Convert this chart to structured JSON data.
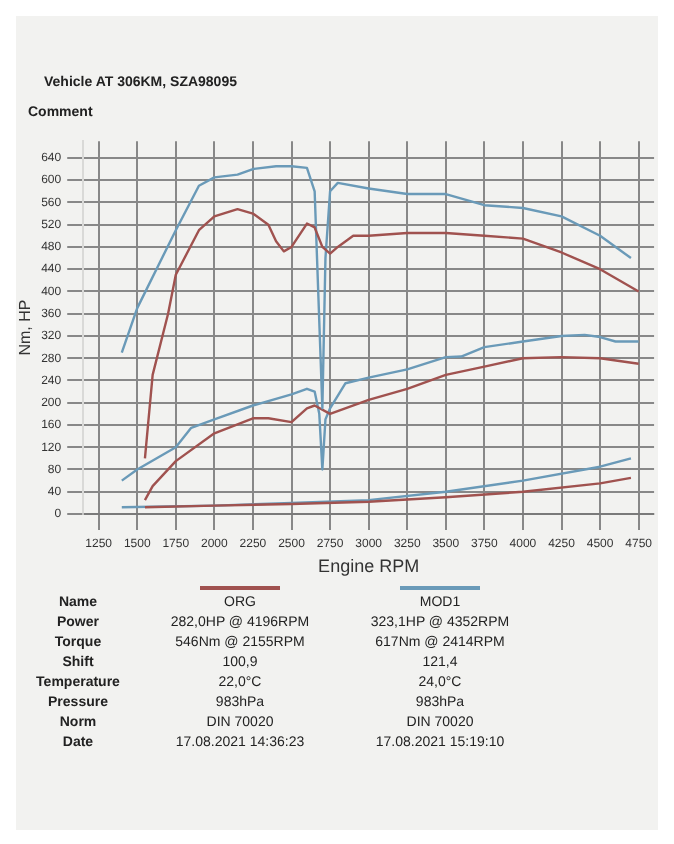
{
  "chart_data": {
    "type": "line",
    "xlabel": "Engine RPM",
    "ylabel": "Nm, HP",
    "xlim": [
      1150,
      4850
    ],
    "xticks": [
      1250,
      1500,
      1750,
      2000,
      2250,
      2500,
      2750,
      3000,
      3250,
      3500,
      3750,
      4000,
      4250,
      4500,
      4750
    ],
    "ylim": [
      0,
      670
    ],
    "yticks": [
      0,
      40,
      80,
      120,
      160,
      200,
      240,
      280,
      320,
      360,
      400,
      440,
      480,
      520,
      560,
      600,
      640
    ],
    "grid": true,
    "legend": false,
    "annotations": [
      "Vehicle   AT 306KM, SZA98095",
      "Comment",
      "Name",
      "ORG",
      "MOD1",
      "Power",
      "282,0HP @  4196RPM",
      "323,1HP @  4352RPM",
      "Torque",
      "546Nm @ 2155RPM",
      "617Nm @ 2414RPM",
      "Shift",
      "100,9",
      "121,4",
      "Temperature",
      "22,0°C",
      "24,0°C",
      "Pressure",
      "983hPa",
      "983hPa",
      "Norm",
      "DIN 70020",
      "DIN 70020",
      "Date",
      "17.08.2021 14:36:23",
      "17.08.2021 15:19:10"
    ],
    "series": [
      {
        "color": "#a0524f",
        "x": [
          1550,
          1600,
          1700,
          1750,
          1900,
          2000,
          2150,
          2250,
          2350,
          2400,
          2450,
          2500,
          2600,
          2650,
          2700,
          2750,
          2800,
          2900,
          3000,
          3250,
          3500,
          3750,
          4000,
          4250,
          4500,
          4750
        ],
        "values": [
          100,
          250,
          360,
          430,
          510,
          535,
          548,
          540,
          520,
          490,
          472,
          480,
          522,
          515,
          480,
          468,
          480,
          500,
          500,
          505,
          505,
          500,
          495,
          470,
          440,
          400
        ]
      },
      {
        "color": "#6a9ab8",
        "x": [
          1400,
          1500,
          1750,
          1900,
          2000,
          2150,
          2250,
          2400,
          2500,
          2600,
          2650,
          2700,
          2720,
          2750,
          2800,
          3000,
          3250,
          3500,
          3750,
          4000,
          4250,
          4500,
          4700
        ],
        "values": [
          290,
          370,
          510,
          590,
          605,
          610,
          620,
          625,
          625,
          622,
          580,
          190,
          460,
          580,
          595,
          585,
          575,
          575,
          555,
          550,
          535,
          500,
          460
        ]
      },
      {
        "color": "#a0524f",
        "x": [
          1550,
          1600,
          1750,
          2000,
          2250,
          2350,
          2500,
          2600,
          2650,
          2750,
          3000,
          3250,
          3500,
          3750,
          4000,
          4250,
          4500,
          4750
        ],
        "values": [
          25,
          50,
          95,
          145,
          172,
          172,
          165,
          190,
          195,
          180,
          205,
          225,
          250,
          265,
          280,
          282,
          280,
          270
        ]
      },
      {
        "color": "#6a9ab8",
        "x": [
          1400,
          1500,
          1750,
          1850,
          2000,
          2250,
          2500,
          2600,
          2650,
          2680,
          2700,
          2720,
          2750,
          2850,
          3000,
          3250,
          3500,
          3600,
          3750,
          4000,
          4250,
          4400,
          4500,
          4600,
          4750
        ],
        "values": [
          60,
          80,
          120,
          155,
          170,
          195,
          215,
          225,
          220,
          180,
          80,
          170,
          190,
          235,
          245,
          260,
          282,
          283,
          300,
          310,
          320,
          322,
          318,
          310,
          310
        ]
      },
      {
        "color": "#a0524f",
        "x": [
          1550,
          2000,
          2500,
          3000,
          3500,
          4000,
          4500,
          4700
        ],
        "values": [
          12,
          15,
          18,
          22,
          30,
          40,
          55,
          65
        ]
      },
      {
        "color": "#6a9ab8",
        "x": [
          1400,
          2000,
          2500,
          3000,
          3500,
          4000,
          4500,
          4700
        ],
        "values": [
          12,
          15,
          20,
          25,
          40,
          60,
          85,
          100
        ]
      }
    ]
  }
}
